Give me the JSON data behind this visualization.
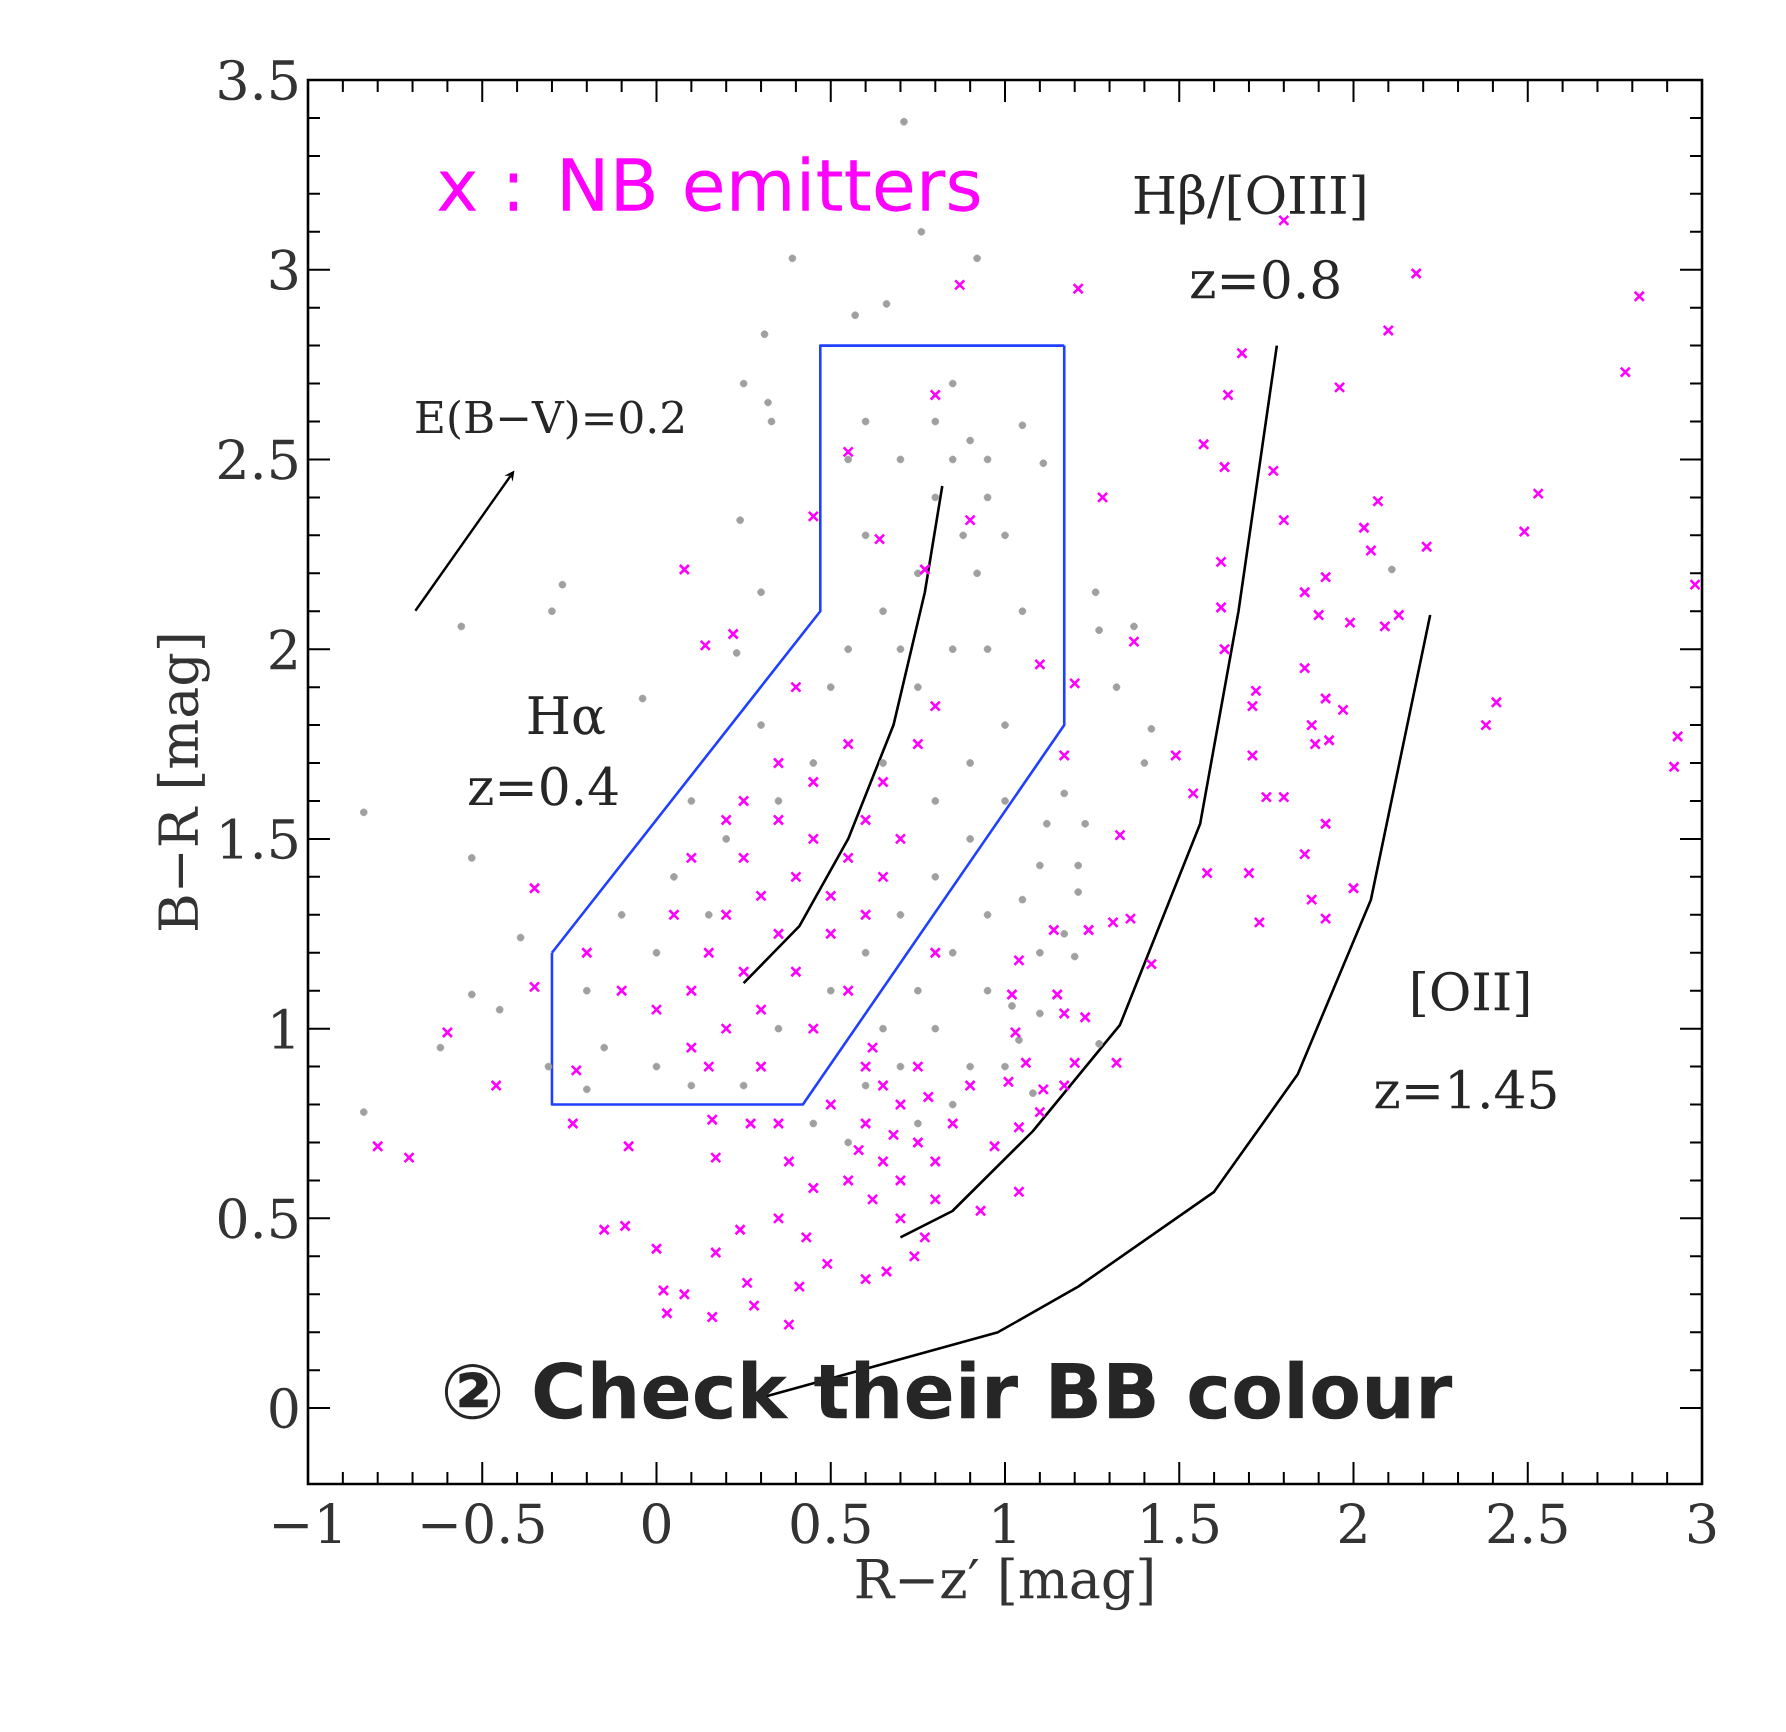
{
  "chart_data": {
    "type": "scatter",
    "xlabel": "R−z′  [mag]",
    "ylabel": "B−R  [mag]",
    "xlim": [
      -1,
      3
    ],
    "ylim": [
      -0.2,
      3.5
    ],
    "xticks": [
      {
        "value": -1,
        "label": "−1"
      },
      {
        "value": -0.5,
        "label": "−0.5"
      },
      0,
      0.5,
      1,
      1.5,
      2,
      2.5,
      3
    ],
    "yticks": [
      0,
      0.5,
      1,
      1.5,
      2,
      2.5,
      3,
      3.5
    ],
    "annotations": [
      "E(B−V)=0.2",
      "Hα",
      "z=0.4",
      "Hβ/[OIII]",
      "z=0.8",
      "[OII]",
      "z=1.45",
      "② Check their BB colour"
    ],
    "series": [
      {
        "type": "line",
        "marker": "none",
        "color": "#2040ff",
        "x": [
          -0.3,
          -0.3,
          0.42,
          1.17,
          1.17
        ],
        "values": [
          1.2,
          0.8,
          0.8,
          1.8,
          2.8
        ]
      },
      {
        "type": "line",
        "marker": "none",
        "color": "#2040ff",
        "x": [
          -0.3,
          0.47,
          0.47,
          1.17
        ],
        "values": [
          1.2,
          2.1,
          2.8,
          2.8
        ]
      },
      {
        "marker": "circle",
        "color": "#a0a0a0",
        "x": [
          0.71,
          0.76,
          0.92,
          0.39,
          0.66,
          0.57,
          0.31,
          0.25,
          0.32,
          0.33,
          0.24,
          -0.27,
          -0.3,
          -0.56,
          0.3,
          -0.04,
          0.23,
          -0.84,
          -0.53,
          -0.53,
          -0.45,
          -0.62,
          -0.84,
          -0.39,
          -0.31,
          -0.2,
          2.11,
          1.26,
          1.27,
          1.37,
          1.32,
          1.42,
          1.4,
          1.05,
          1.11,
          1.17,
          1.12,
          1.23,
          1.1,
          1.21,
          1.21,
          1.05,
          1.17,
          1.1,
          1.2,
          1.02,
          1.1,
          1.04,
          1.27,
          1.08,
          0.55,
          0.6,
          0.65,
          0.7,
          0.75,
          0.8,
          0.85,
          0.9,
          0.95,
          0.88,
          0.92,
          0.8,
          0.85,
          0.95,
          1.0,
          0.7,
          0.6,
          0.55,
          0.5,
          0.75,
          0.85,
          0.95,
          1.05,
          1.0,
          0.9,
          0.8,
          0.65,
          0.45,
          0.35,
          0.3,
          0.2,
          0.1,
          0.05,
          0.15,
          0.0,
          -0.1,
          -0.2,
          -0.15,
          0.0,
          0.1,
          0.25,
          0.35,
          0.5,
          0.6,
          0.7,
          0.8,
          0.9,
          1.0,
          0.65,
          0.75,
          0.85,
          0.95,
          0.6,
          0.7,
          0.8,
          0.9,
          0.75,
          0.85,
          1.0,
          0.95,
          0.55,
          0.45
        ],
        "values": [
          3.39,
          3.1,
          3.03,
          3.03,
          2.91,
          2.88,
          2.83,
          2.7,
          2.65,
          2.6,
          2.34,
          2.17,
          2.1,
          2.06,
          2.15,
          1.87,
          1.99,
          1.57,
          1.45,
          1.09,
          1.05,
          0.95,
          0.78,
          1.24,
          0.9,
          0.84,
          2.21,
          2.15,
          2.05,
          2.06,
          1.9,
          1.79,
          1.7,
          2.59,
          2.49,
          1.62,
          1.54,
          1.54,
          1.43,
          1.43,
          1.36,
          1.34,
          1.25,
          1.2,
          1.19,
          1.06,
          1.04,
          0.97,
          0.96,
          0.83,
          2.5,
          2.3,
          2.1,
          2.0,
          2.2,
          2.4,
          2.5,
          2.55,
          2.5,
          2.3,
          2.2,
          2.6,
          2.7,
          2.4,
          2.3,
          2.5,
          2.6,
          2.0,
          1.9,
          1.9,
          2.0,
          2.0,
          2.1,
          1.8,
          1.7,
          1.6,
          1.7,
          1.7,
          1.6,
          1.8,
          1.5,
          1.6,
          1.4,
          1.3,
          1.2,
          1.3,
          1.1,
          0.95,
          0.9,
          0.85,
          0.85,
          1.0,
          1.1,
          1.2,
          1.3,
          1.4,
          1.5,
          1.6,
          1.0,
          1.1,
          1.2,
          1.3,
          0.85,
          0.9,
          1.0,
          0.9,
          0.75,
          0.8,
          0.9,
          1.1,
          0.7,
          0.75
        ]
      },
      {
        "marker": "cross",
        "name": "x : NB emitters",
        "color": "#ff00ff",
        "x": [
          0.87,
          0.8,
          0.55,
          0.45,
          0.08,
          0.22,
          0.14,
          0.64,
          0.9,
          0.77,
          1.21,
          1.8,
          2.18,
          2.1,
          1.68,
          1.64,
          1.96,
          1.57,
          1.63,
          1.77,
          2.82,
          2.78,
          1.28,
          1.8,
          2.07,
          2.03,
          2.05,
          2.21,
          2.53,
          2.49,
          2.98,
          1.62,
          1.62,
          1.63,
          1.37,
          1.86,
          1.92,
          1.9,
          1.99,
          2.09,
          2.13,
          1.86,
          1.72,
          1.71,
          1.92,
          1.97,
          1.88,
          1.89,
          1.93,
          2.41,
          2.38,
          2.93,
          2.92,
          1.49,
          1.71,
          1.17,
          1.2,
          1.1,
          1.54,
          1.8,
          1.75,
          1.92,
          1.33,
          1.86,
          1.58,
          1.7,
          1.88,
          2.0,
          1.92,
          1.73,
          1.14,
          1.24,
          1.31,
          1.36,
          1.42,
          1.04,
          1.02,
          1.15,
          1.17,
          1.23,
          1.03,
          1.06,
          1.2,
          1.32,
          1.01,
          1.11,
          1.17,
          1.1,
          1.04,
          1.04,
          -0.35,
          -0.35,
          -0.6,
          -0.46,
          -0.23,
          -0.24,
          -0.8,
          -0.71,
          -0.08,
          0.17,
          -0.15,
          -0.09,
          0.0,
          0.17,
          0.24,
          0.02,
          0.08,
          0.03,
          0.16,
          0.26,
          0.28,
          0.38,
          0.41,
          0.16,
          0.27,
          0.35,
          0.38,
          0.45,
          0.35,
          0.43,
          0.49,
          0.6,
          0.66,
          0.74,
          0.77,
          0.97,
          0.93,
          0.62,
          0.6,
          0.65,
          0.7,
          0.75,
          0.6,
          0.65,
          0.7,
          0.8,
          0.85,
          0.9,
          0.55,
          0.62,
          0.7,
          0.8,
          0.75,
          0.5,
          0.58,
          0.68,
          0.78,
          0.1,
          0.15,
          0.2,
          0.25,
          0.3,
          0.35,
          0.4,
          0.45,
          0.5,
          0.55,
          0.6,
          0.65,
          0.7,
          0.75,
          0.8,
          0.4,
          0.3,
          0.2,
          0.1,
          0.0,
          -0.1,
          -0.2,
          0.05,
          0.25,
          0.35,
          0.45,
          0.55,
          0.4,
          0.5,
          0.6,
          0.65,
          0.8,
          0.15,
          0.3,
          0.45,
          0.35,
          0.25,
          0.55,
          0.2,
          0.1
        ],
        "values": [
          2.96,
          2.67,
          2.52,
          2.35,
          2.21,
          2.04,
          2.01,
          2.29,
          2.34,
          2.21,
          2.95,
          3.13,
          2.99,
          2.84,
          2.78,
          2.67,
          2.69,
          2.54,
          2.48,
          2.47,
          2.93,
          2.73,
          2.4,
          2.34,
          2.39,
          2.32,
          2.26,
          2.27,
          2.41,
          2.31,
          2.17,
          2.23,
          2.11,
          2.0,
          2.02,
          2.15,
          2.19,
          2.09,
          2.07,
          2.06,
          2.09,
          1.95,
          1.89,
          1.85,
          1.87,
          1.84,
          1.8,
          1.75,
          1.76,
          1.86,
          1.8,
          1.77,
          1.69,
          1.72,
          1.72,
          1.72,
          1.91,
          1.96,
          1.62,
          1.61,
          1.61,
          1.54,
          1.51,
          1.46,
          1.41,
          1.41,
          1.34,
          1.37,
          1.29,
          1.28,
          1.26,
          1.26,
          1.28,
          1.29,
          1.17,
          1.18,
          1.09,
          1.09,
          1.04,
          1.03,
          0.99,
          0.91,
          0.91,
          0.91,
          0.86,
          0.84,
          0.85,
          0.78,
          0.74,
          0.57,
          1.37,
          1.11,
          0.99,
          0.85,
          0.89,
          0.75,
          0.69,
          0.66,
          0.69,
          0.66,
          0.47,
          0.48,
          0.42,
          0.41,
          0.47,
          0.31,
          0.3,
          0.25,
          0.24,
          0.33,
          0.27,
          0.22,
          0.32,
          0.76,
          0.75,
          0.75,
          0.65,
          0.58,
          0.5,
          0.45,
          0.38,
          0.34,
          0.36,
          0.4,
          0.45,
          0.69,
          0.52,
          0.95,
          0.9,
          0.85,
          0.8,
          0.7,
          0.75,
          0.65,
          0.6,
          0.65,
          0.75,
          0.85,
          0.6,
          0.55,
          0.5,
          0.55,
          0.9,
          0.8,
          0.68,
          0.72,
          0.82,
          1.1,
          1.2,
          1.3,
          1.15,
          1.35,
          1.25,
          1.4,
          1.5,
          1.35,
          1.45,
          1.55,
          1.65,
          1.5,
          1.75,
          1.85,
          1.15,
          1.05,
          1.0,
          0.95,
          1.05,
          1.1,
          1.2,
          1.3,
          1.45,
          1.55,
          1.65,
          1.75,
          1.9,
          1.25,
          1.3,
          1.4,
          1.2,
          0.9,
          0.9,
          1.0,
          1.7,
          1.6,
          1.1,
          1.55,
          1.45
        ]
      },
      {
        "type": "line",
        "marker": "none",
        "color": "#000000",
        "x": [
          0.25,
          0.41,
          0.55,
          0.68,
          0.77,
          0.82
        ],
        "values": [
          1.12,
          1.27,
          1.5,
          1.8,
          2.15,
          2.43
        ]
      },
      {
        "type": "line",
        "marker": "none",
        "color": "#000000",
        "x": [
          0.7,
          0.85,
          1.08,
          1.33,
          1.56,
          1.67,
          1.78
        ],
        "values": [
          0.45,
          0.52,
          0.73,
          1.01,
          1.54,
          2.1,
          2.8
        ]
      },
      {
        "type": "line",
        "marker": "none",
        "color": "#000000",
        "x": [
          0.31,
          0.98,
          1.21,
          1.6,
          1.84,
          2.05,
          2.22
        ],
        "values": [
          0.03,
          0.2,
          0.32,
          0.57,
          0.88,
          1.34,
          2.09
        ]
      }
    ]
  }
}
